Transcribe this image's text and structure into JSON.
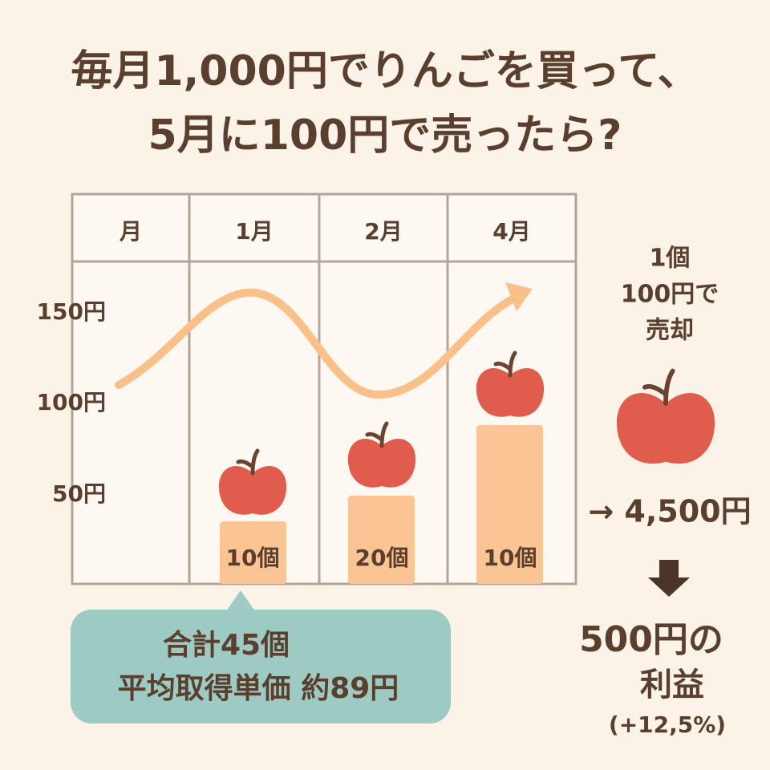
{
  "title": [
    "毎月1,000円でりんごを買って、",
    "5月に100円で売ったら?"
  ],
  "table": {
    "header": [
      "月",
      "1月",
      "2月",
      "4月"
    ],
    "y_labels": [
      "150円",
      "100円",
      "50円"
    ],
    "counts": [
      "10個",
      "20個",
      "10個"
    ]
  },
  "callout": [
    "合計45個",
    "平均取得単価 約89円"
  ],
  "sale": [
    "1個",
    "100円で",
    "売却"
  ],
  "proceeds": "→ 4,500円",
  "result": [
    "500円の",
    "利益",
    "(+12,5%)"
  ]
}
